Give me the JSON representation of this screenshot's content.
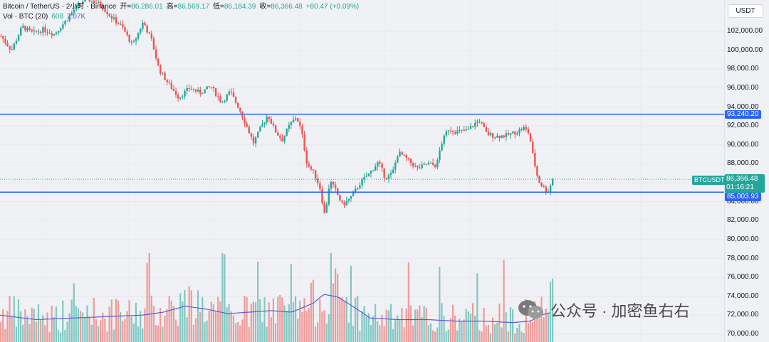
{
  "legend": {
    "symbol": "Bitcoin / TetherUS · 2小时 · Binance",
    "open_label": "开=",
    "open_value": "86,286.01",
    "high_label": "高=",
    "high_value": "86,569.17",
    "low_label": "低=",
    "low_value": "86,184.39",
    "close_label": "收=",
    "close_value": "86,366.48",
    "change": "+80.47 (+0.09%)",
    "vol_label": "Vol · BTC (20)",
    "vol_value": "608",
    "vol_ma": "2.07K"
  },
  "axis": {
    "currency": "USDT",
    "ticks": [
      "102,000.00",
      "100,000.00",
      "98,000.00",
      "96,000.00",
      "94,000.00",
      "92,000.00",
      "90,000.00",
      "88,000.00",
      "86,000.00",
      "84,000.00",
      "82,000.00",
      "80,000.00",
      "78,000.00",
      "76,000.00",
      "74,000.00",
      "72,000.00",
      "70,000.00"
    ]
  },
  "levels": {
    "upper": "93,240.20",
    "lower": "85,003.93"
  },
  "price_tag": {
    "symbol": "BTCUSDT",
    "price": "86,366.48",
    "countdown": "01:16:21"
  },
  "watermark": "公众号 · 加密鱼右右",
  "colors": {
    "up": "#26a69a",
    "down": "#ef5350",
    "level_line": "#2962ff",
    "vol_ma_line": "#5b5bd6"
  },
  "chart_data": {
    "type": "candlestick",
    "symbol": "BTCUSDT",
    "ylim": [
      69500,
      104200
    ],
    "horizontal_levels": [
      93240.2,
      85003.93
    ],
    "last_price": 86366.48,
    "price_path": [
      [
        0,
        101500
      ],
      [
        15,
        100000
      ],
      [
        30,
        102500
      ],
      [
        45,
        101800
      ],
      [
        60,
        102200
      ],
      [
        75,
        101700
      ],
      [
        90,
        103000
      ],
      [
        105,
        104500
      ],
      [
        120,
        105500
      ],
      [
        140,
        104800
      ],
      [
        155,
        103500
      ],
      [
        170,
        102500
      ],
      [
        185,
        100500
      ],
      [
        200,
        103000
      ],
      [
        212,
        101000
      ],
      [
        222,
        98000
      ],
      [
        235,
        96500
      ],
      [
        250,
        95000
      ],
      [
        265,
        96000
      ],
      [
        280,
        95500
      ],
      [
        295,
        96200
      ],
      [
        310,
        94500
      ],
      [
        322,
        95600
      ],
      [
        335,
        93800
      ],
      [
        345,
        92000
      ],
      [
        355,
        90200
      ],
      [
        365,
        91800
      ],
      [
        375,
        93200
      ],
      [
        385,
        91500
      ],
      [
        395,
        90500
      ],
      [
        405,
        92000
      ],
      [
        415,
        93000
      ],
      [
        422,
        91500
      ],
      [
        430,
        88000
      ],
      [
        440,
        87000
      ],
      [
        448,
        85500
      ],
      [
        455,
        82500
      ],
      [
        462,
        86200
      ],
      [
        470,
        85200
      ],
      [
        480,
        83600
      ],
      [
        492,
        84500
      ],
      [
        505,
        86000
      ],
      [
        518,
        87000
      ],
      [
        530,
        88200
      ],
      [
        540,
        86500
      ],
      [
        550,
        87000
      ],
      [
        558,
        89200
      ],
      [
        570,
        88500
      ],
      [
        585,
        87500
      ],
      [
        600,
        88000
      ],
      [
        612,
        87800
      ],
      [
        618,
        90000
      ],
      [
        628,
        91700
      ],
      [
        640,
        91400
      ],
      [
        655,
        91500
      ],
      [
        665,
        92200
      ],
      [
        672,
        92600
      ],
      [
        682,
        91200
      ],
      [
        695,
        90900
      ],
      [
        710,
        91000
      ],
      [
        725,
        91400
      ],
      [
        735,
        91800
      ],
      [
        742,
        91200
      ],
      [
        748,
        88500
      ],
      [
        755,
        86200
      ],
      [
        762,
        85500
      ],
      [
        768,
        85000
      ],
      [
        775,
        86370
      ]
    ],
    "volume_path": [
      [
        0,
        0.1
      ],
      [
        30,
        0.09
      ],
      [
        60,
        0.08
      ],
      [
        90,
        0.09
      ],
      [
        120,
        0.1
      ],
      [
        150,
        0.09
      ],
      [
        180,
        0.09
      ],
      [
        210,
        0.1
      ],
      [
        240,
        0.12
      ],
      [
        260,
        0.13
      ],
      [
        290,
        0.11
      ],
      [
        320,
        0.09
      ],
      [
        350,
        0.1
      ],
      [
        380,
        0.11
      ],
      [
        410,
        0.1
      ],
      [
        440,
        0.13
      ],
      [
        455,
        0.16
      ],
      [
        470,
        0.16
      ],
      [
        490,
        0.12
      ],
      [
        510,
        0.09
      ],
      [
        540,
        0.08
      ],
      [
        570,
        0.08
      ],
      [
        600,
        0.08
      ],
      [
        630,
        0.08
      ],
      [
        660,
        0.08
      ],
      [
        690,
        0.08
      ],
      [
        720,
        0.08
      ],
      [
        745,
        0.08
      ],
      [
        760,
        0.1
      ],
      [
        775,
        0.13
      ]
    ],
    "volume_ma_path": [
      [
        0,
        0.09
      ],
      [
        50,
        0.075
      ],
      [
        100,
        0.08
      ],
      [
        150,
        0.085
      ],
      [
        200,
        0.09
      ],
      [
        230,
        0.1
      ],
      [
        260,
        0.12
      ],
      [
        290,
        0.11
      ],
      [
        320,
        0.095
      ],
      [
        350,
        0.1
      ],
      [
        380,
        0.105
      ],
      [
        410,
        0.1
      ],
      [
        440,
        0.13
      ],
      [
        455,
        0.16
      ],
      [
        475,
        0.15
      ],
      [
        495,
        0.12
      ],
      [
        520,
        0.08
      ],
      [
        560,
        0.075
      ],
      [
        600,
        0.075
      ],
      [
        640,
        0.07
      ],
      [
        680,
        0.07
      ],
      [
        720,
        0.065
      ],
      [
        745,
        0.07
      ],
      [
        760,
        0.09
      ],
      [
        775,
        0.1
      ]
    ],
    "candle_count": 250
  }
}
